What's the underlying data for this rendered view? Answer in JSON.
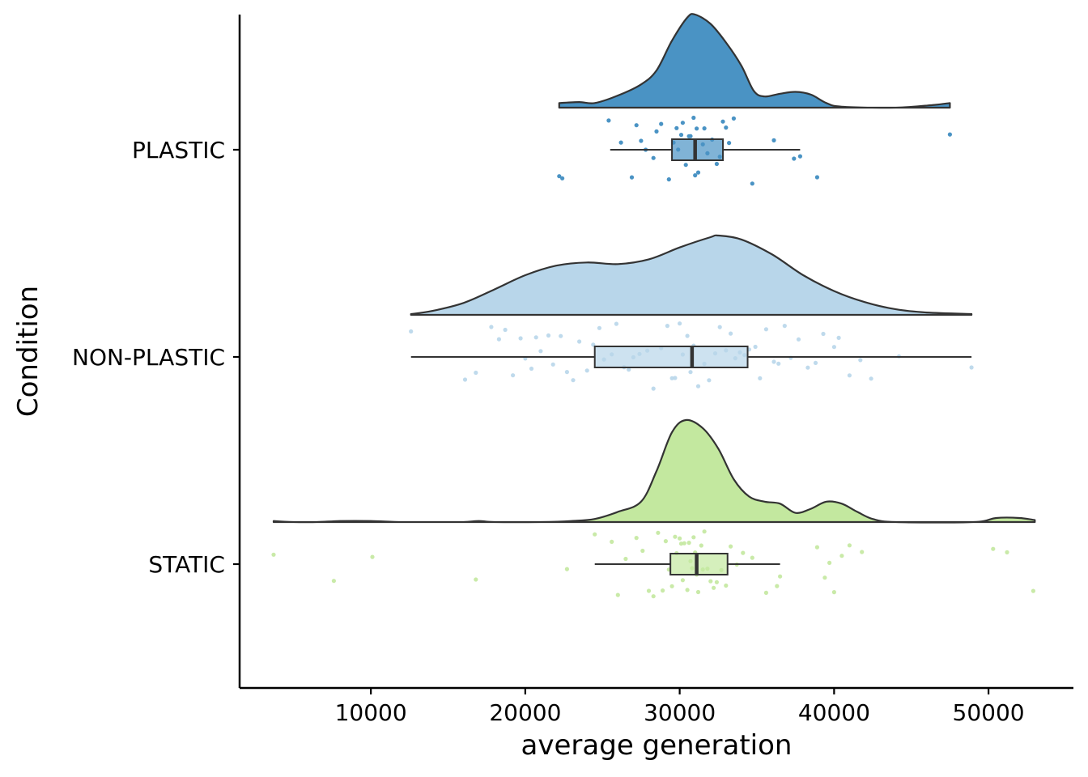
{
  "chart_data": {
    "type": "raincloud",
    "orientation": "horizontal",
    "xlabel": "average generation",
    "ylabel": "Condition",
    "xlim": [
      1500,
      55500
    ],
    "x_ticks": [
      10000,
      20000,
      30000,
      40000,
      50000
    ],
    "x_tick_labels": [
      "10000",
      "20000",
      "30000",
      "40000",
      "50000"
    ],
    "grid": false,
    "legend": "none",
    "categories": [
      "PLASTIC",
      "NON-PLASTIC",
      "STATIC"
    ],
    "series": [
      {
        "name": "PLASTIC",
        "color": "#4a93c4",
        "range": [
          22200,
          47500
        ],
        "box": {
          "min": 25500,
          "q1": 29500,
          "median": 31000,
          "q3": 32800,
          "max": 37800
        },
        "density_peak": 31000,
        "density": [
          [
            22200,
            0.05
          ],
          [
            23500,
            0.06
          ],
          [
            24500,
            0.05
          ],
          [
            26000,
            0.13
          ],
          [
            27500,
            0.25
          ],
          [
            28500,
            0.4
          ],
          [
            29500,
            0.72
          ],
          [
            30500,
            0.97
          ],
          [
            31000,
            1.0
          ],
          [
            32000,
            0.9
          ],
          [
            33000,
            0.7
          ],
          [
            34000,
            0.45
          ],
          [
            34800,
            0.18
          ],
          [
            35500,
            0.12
          ],
          [
            36500,
            0.15
          ],
          [
            37500,
            0.17
          ],
          [
            38500,
            0.14
          ],
          [
            39500,
            0.05
          ],
          [
            40500,
            0.01
          ],
          [
            44000,
            0.0
          ],
          [
            46500,
            0.03
          ],
          [
            47500,
            0.05
          ]
        ],
        "points": [
          22200,
          22400,
          25400,
          26200,
          26900,
          27200,
          27500,
          27800,
          28300,
          28500,
          28800,
          29300,
          29600,
          29800,
          29900,
          30100,
          30200,
          30400,
          30600,
          30700,
          30900,
          31000,
          31100,
          31200,
          31500,
          31600,
          31800,
          32100,
          32400,
          32600,
          32800,
          33000,
          33200,
          33500,
          34700,
          36100,
          37400,
          37800,
          38900,
          47500
        ]
      },
      {
        "name": "NON-PLASTIC",
        "color": "#b8d6ea",
        "range": [
          12600,
          48900
        ],
        "box": {
          "min": 12600,
          "q1": 24500,
          "median": 30800,
          "q3": 34400,
          "max": 48900
        },
        "density_peak": 32500,
        "density": [
          [
            12600,
            0.01
          ],
          [
            14000,
            0.05
          ],
          [
            16000,
            0.15
          ],
          [
            18000,
            0.32
          ],
          [
            20000,
            0.5
          ],
          [
            22000,
            0.62
          ],
          [
            24000,
            0.66
          ],
          [
            26000,
            0.64
          ],
          [
            28000,
            0.7
          ],
          [
            30000,
            0.85
          ],
          [
            32000,
            0.98
          ],
          [
            32500,
            1.0
          ],
          [
            34000,
            0.95
          ],
          [
            36000,
            0.76
          ],
          [
            38000,
            0.5
          ],
          [
            40000,
            0.3
          ],
          [
            42000,
            0.16
          ],
          [
            44000,
            0.07
          ],
          [
            46000,
            0.03
          ],
          [
            48900,
            0.01
          ]
        ],
        "points": [
          12600,
          16100,
          16800,
          17800,
          18300,
          18700,
          19200,
          19700,
          20000,
          20400,
          20700,
          21000,
          21500,
          21800,
          22300,
          22700,
          23100,
          23500,
          24000,
          24400,
          24800,
          25100,
          25600,
          25900,
          26400,
          26700,
          27000,
          27400,
          27900,
          28300,
          28800,
          29200,
          29500,
          29700,
          30000,
          30200,
          30500,
          30700,
          30900,
          31200,
          31600,
          31900,
          32300,
          32600,
          33000,
          33300,
          33600,
          33900,
          34200,
          34500,
          34900,
          35200,
          35600,
          36100,
          36400,
          36800,
          37200,
          37700,
          38300,
          38800,
          39300,
          40000,
          40300,
          41000,
          41700,
          42400,
          44200,
          48900
        ]
      },
      {
        "name": "STATIC",
        "color": "#c3e89f",
        "range": [
          3700,
          53000
        ],
        "box": {
          "min": 24500,
          "q1": 29400,
          "median": 31100,
          "q3": 33100,
          "max": 36500
        },
        "density_peak": 30400,
        "density": [
          [
            3700,
            0.01
          ],
          [
            5000,
            0.0
          ],
          [
            6500,
            0.0
          ],
          [
            8000,
            0.01
          ],
          [
            10000,
            0.01
          ],
          [
            12000,
            0.0
          ],
          [
            14000,
            0.0
          ],
          [
            16000,
            0.0
          ],
          [
            17000,
            0.01
          ],
          [
            18000,
            0.0
          ],
          [
            21000,
            0.0
          ],
          [
            23000,
            0.01
          ],
          [
            24500,
            0.03
          ],
          [
            26000,
            0.1
          ],
          [
            27500,
            0.2
          ],
          [
            28500,
            0.5
          ],
          [
            29500,
            0.88
          ],
          [
            30400,
            1.0
          ],
          [
            31500,
            0.92
          ],
          [
            32500,
            0.72
          ],
          [
            33500,
            0.42
          ],
          [
            34500,
            0.25
          ],
          [
            35500,
            0.2
          ],
          [
            36500,
            0.18
          ],
          [
            37500,
            0.09
          ],
          [
            38500,
            0.13
          ],
          [
            39500,
            0.2
          ],
          [
            40500,
            0.18
          ],
          [
            41500,
            0.1
          ],
          [
            42500,
            0.03
          ],
          [
            44000,
            0.0
          ],
          [
            49000,
            0.0
          ],
          [
            50500,
            0.04
          ],
          [
            52000,
            0.04
          ],
          [
            53000,
            0.02
          ]
        ],
        "points": [
          3700,
          7600,
          10100,
          16800,
          22700,
          24500,
          25600,
          26000,
          26500,
          27200,
          27600,
          28000,
          28300,
          28600,
          28900,
          29100,
          29300,
          29500,
          29700,
          29800,
          30000,
          30100,
          30200,
          30300,
          30500,
          30600,
          30700,
          30800,
          30900,
          31000,
          31100,
          31200,
          31400,
          31500,
          31600,
          31800,
          32000,
          32200,
          32400,
          32700,
          33000,
          33300,
          33700,
          34100,
          34700,
          35600,
          36300,
          36500,
          38900,
          39400,
          39700,
          40000,
          40500,
          41000,
          41800,
          50300,
          51200,
          52900
        ]
      }
    ]
  }
}
